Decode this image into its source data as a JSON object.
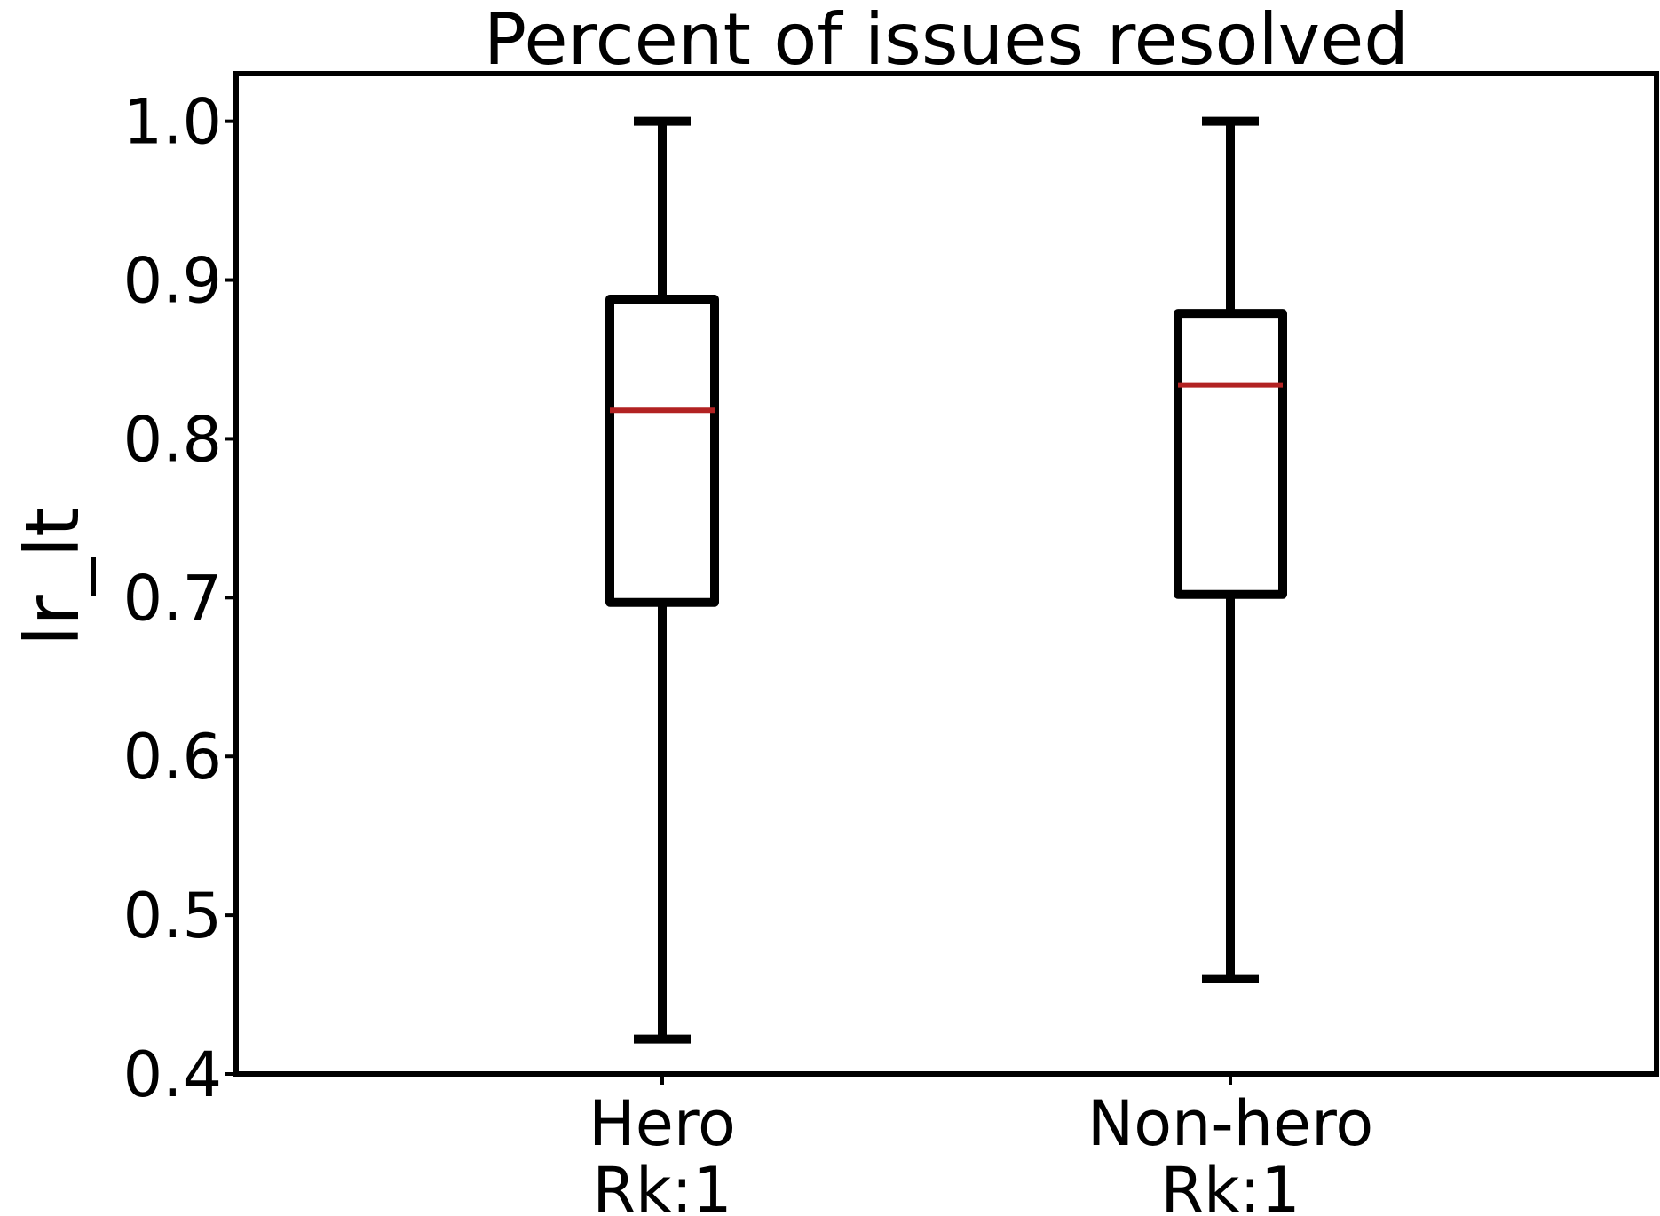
{
  "chart_data": {
    "type": "box",
    "title": "Percent of issues resolved",
    "xlabel": "",
    "ylabel": "lr_lt",
    "ylim": [
      0.4,
      1.03
    ],
    "yticks": [
      "0.4",
      "0.5",
      "0.6",
      "0.7",
      "0.8",
      "0.9",
      "1.0"
    ],
    "grid": false,
    "categories": [
      {
        "line1": "Hero",
        "line2": "Rk:1"
      },
      {
        "line1": "Non-hero",
        "line2": "Rk:1"
      }
    ],
    "boxes": [
      {
        "whisker_low": 0.422,
        "q1": 0.697,
        "median": 0.818,
        "q3": 0.888,
        "whisker_high": 1.0
      },
      {
        "whisker_low": 0.46,
        "q1": 0.702,
        "median": 0.834,
        "q3": 0.879,
        "whisker_high": 1.0
      }
    ],
    "colors": {
      "box": "#000000",
      "median": "#b22222"
    }
  }
}
